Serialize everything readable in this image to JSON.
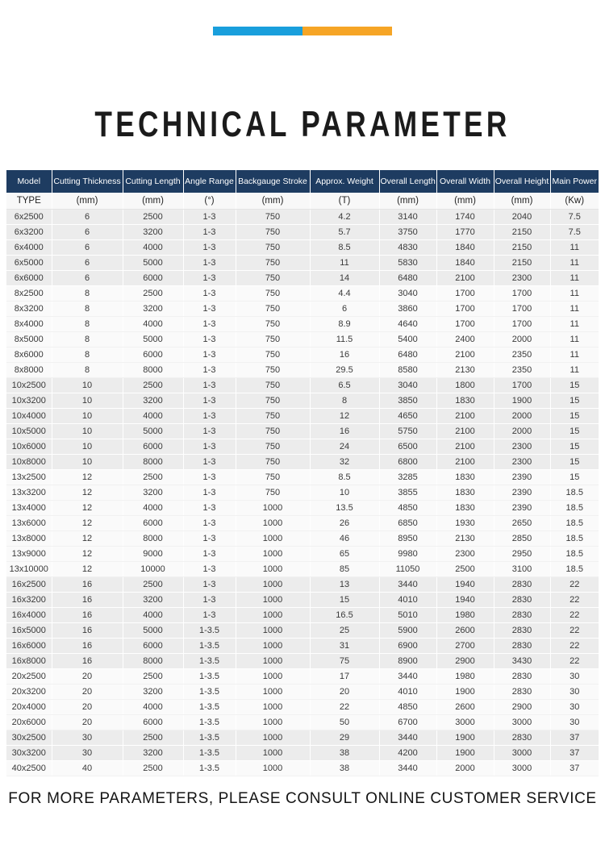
{
  "colors": {
    "accent_blue": "#199fdc",
    "accent_orange": "#f6a526",
    "header_bg": "#1e3c61",
    "row_shaded": "#ececec",
    "row_plain": "#fafafa"
  },
  "header": {
    "title": "TECHNICAL PARAMETER"
  },
  "table": {
    "columns": [
      {
        "key": "model",
        "label": "Model",
        "unit": "TYPE"
      },
      {
        "key": "cutting-thickness",
        "label": "Cutting Thickness",
        "unit": "(mm)"
      },
      {
        "key": "cutting-length",
        "label": "Cutting Length",
        "unit": "(mm)"
      },
      {
        "key": "angle-range",
        "label": "Angle Range",
        "unit": "(°)"
      },
      {
        "key": "backgauge-stroke",
        "label": "Backgauge Stroke",
        "unit": "(mm)"
      },
      {
        "key": "approx-weight",
        "label": "Approx. Weight",
        "unit": "(T)"
      },
      {
        "key": "overall-length",
        "label": "Overall Length",
        "unit": "(mm)"
      },
      {
        "key": "overall-width",
        "label": "Overall Width",
        "unit": "(mm)"
      },
      {
        "key": "overall-height",
        "label": "Overall Height",
        "unit": "(mm)"
      },
      {
        "key": "main-power",
        "label": "Main Power",
        "unit": "(Kw)"
      }
    ],
    "rows": [
      [
        "6x2500",
        "6",
        "2500",
        "1-3",
        "750",
        "4.2",
        "3140",
        "1740",
        "2040",
        "7.5"
      ],
      [
        "6x3200",
        "6",
        "3200",
        "1-3",
        "750",
        "5.7",
        "3750",
        "1770",
        "2150",
        "7.5"
      ],
      [
        "6x4000",
        "6",
        "4000",
        "1-3",
        "750",
        "8.5",
        "4830",
        "1840",
        "2150",
        "11"
      ],
      [
        "6x5000",
        "6",
        "5000",
        "1-3",
        "750",
        "11",
        "5830",
        "1840",
        "2150",
        "11"
      ],
      [
        "6x6000",
        "6",
        "6000",
        "1-3",
        "750",
        "14",
        "6480",
        "2100",
        "2300",
        "11"
      ],
      [
        "8x2500",
        "8",
        "2500",
        "1-3",
        "750",
        "4.4",
        "3040",
        "1700",
        "1700",
        "11"
      ],
      [
        "8x3200",
        "8",
        "3200",
        "1-3",
        "750",
        "6",
        "3860",
        "1700",
        "1700",
        "11"
      ],
      [
        "8x4000",
        "8",
        "4000",
        "1-3",
        "750",
        "8.9",
        "4640",
        "1700",
        "1700",
        "11"
      ],
      [
        "8x5000",
        "8",
        "5000",
        "1-3",
        "750",
        "11.5",
        "5400",
        "2400",
        "2000",
        "11"
      ],
      [
        "8x6000",
        "8",
        "6000",
        "1-3",
        "750",
        "16",
        "6480",
        "2100",
        "2350",
        "11"
      ],
      [
        "8x8000",
        "8",
        "8000",
        "1-3",
        "750",
        "29.5",
        "8580",
        "2130",
        "2350",
        "11"
      ],
      [
        "10x2500",
        "10",
        "2500",
        "1-3",
        "750",
        "6.5",
        "3040",
        "1800",
        "1700",
        "15"
      ],
      [
        "10x3200",
        "10",
        "3200",
        "1-3",
        "750",
        "8",
        "3850",
        "1830",
        "1900",
        "15"
      ],
      [
        "10x4000",
        "10",
        "4000",
        "1-3",
        "750",
        "12",
        "4650",
        "2100",
        "2000",
        "15"
      ],
      [
        "10x5000",
        "10",
        "5000",
        "1-3",
        "750",
        "16",
        "5750",
        "2100",
        "2000",
        "15"
      ],
      [
        "10x6000",
        "10",
        "6000",
        "1-3",
        "750",
        "24",
        "6500",
        "2100",
        "2300",
        "15"
      ],
      [
        "10x8000",
        "10",
        "8000",
        "1-3",
        "750",
        "32",
        "6800",
        "2100",
        "2300",
        "15"
      ],
      [
        "13x2500",
        "12",
        "2500",
        "1-3",
        "750",
        "8.5",
        "3285",
        "1830",
        "2390",
        "15"
      ],
      [
        "13x3200",
        "12",
        "3200",
        "1-3",
        "750",
        "10",
        "3855",
        "1830",
        "2390",
        "18.5"
      ],
      [
        "13x4000",
        "12",
        "4000",
        "1-3",
        "1000",
        "13.5",
        "4850",
        "1830",
        "2390",
        "18.5"
      ],
      [
        "13x6000",
        "12",
        "6000",
        "1-3",
        "1000",
        "26",
        "6850",
        "1930",
        "2650",
        "18.5"
      ],
      [
        "13x8000",
        "12",
        "8000",
        "1-3",
        "1000",
        "46",
        "8950",
        "2130",
        "2850",
        "18.5"
      ],
      [
        "13x9000",
        "12",
        "9000",
        "1-3",
        "1000",
        "65",
        "9980",
        "2300",
        "2950",
        "18.5"
      ],
      [
        "13x10000",
        "12",
        "10000",
        "1-3",
        "1000",
        "85",
        "11050",
        "2500",
        "3100",
        "18.5"
      ],
      [
        "16x2500",
        "16",
        "2500",
        "1-3",
        "1000",
        "13",
        "3440",
        "1940",
        "2830",
        "22"
      ],
      [
        "16x3200",
        "16",
        "3200",
        "1-3",
        "1000",
        "15",
        "4010",
        "1940",
        "2830",
        "22"
      ],
      [
        "16x4000",
        "16",
        "4000",
        "1-3",
        "1000",
        "16.5",
        "5010",
        "1980",
        "2830",
        "22"
      ],
      [
        "16x5000",
        "16",
        "5000",
        "1-3.5",
        "1000",
        "25",
        "5900",
        "2600",
        "2830",
        "22"
      ],
      [
        "16x6000",
        "16",
        "6000",
        "1-3.5",
        "1000",
        "31",
        "6900",
        "2700",
        "2830",
        "22"
      ],
      [
        "16x8000",
        "16",
        "8000",
        "1-3.5",
        "1000",
        "75",
        "8900",
        "2900",
        "3430",
        "22"
      ],
      [
        "20x2500",
        "20",
        "2500",
        "1-3.5",
        "1000",
        "17",
        "3440",
        "1980",
        "2830",
        "30"
      ],
      [
        "20x3200",
        "20",
        "3200",
        "1-3.5",
        "1000",
        "20",
        "4010",
        "1900",
        "2830",
        "30"
      ],
      [
        "20x4000",
        "20",
        "4000",
        "1-3.5",
        "1000",
        "22",
        "4850",
        "2600",
        "2900",
        "30"
      ],
      [
        "20x6000",
        "20",
        "6000",
        "1-3.5",
        "1000",
        "50",
        "6700",
        "3000",
        "3000",
        "30"
      ],
      [
        "30x2500",
        "30",
        "2500",
        "1-3.5",
        "1000",
        "29",
        "3440",
        "1900",
        "2830",
        "37"
      ],
      [
        "30x3200",
        "30",
        "3200",
        "1-3.5",
        "1000",
        "38",
        "4200",
        "1900",
        "3000",
        "37"
      ],
      [
        "40x2500",
        "40",
        "2500",
        "1-3.5",
        "1000",
        "38",
        "3440",
        "2000",
        "3000",
        "37"
      ]
    ]
  },
  "footer": {
    "text": "FOR MORE PARAMETERS, PLEASE CONSULT ONLINE CUSTOMER SERVICE"
  }
}
